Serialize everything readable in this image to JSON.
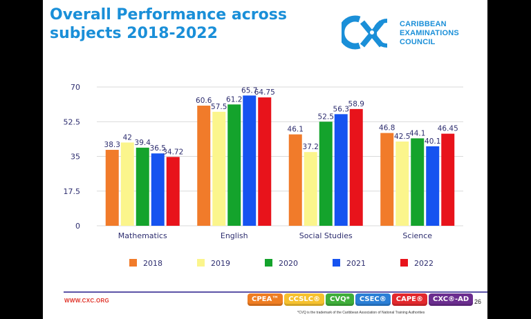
{
  "slide": {
    "title": "Overall Performance across subjects 2018-2022",
    "logo": {
      "line1": "CARIBBEAN",
      "line2": "EXAMINATIONS",
      "line3": "COUNCIL"
    },
    "website": "WWW.CXC.ORG",
    "page_number": "26",
    "trademark": "*CVQ is the trademark of the Caribbean Association of National Training Authorities",
    "badges": [
      {
        "label": "CPEA™",
        "color": "#ef7d22"
      },
      {
        "label": "CCSLC®",
        "color": "#f6c12e"
      },
      {
        "label": "CVQ*",
        "color": "#3fae3a"
      },
      {
        "label": "CSEC®",
        "color": "#2b7fd6"
      },
      {
        "label": "CAPE®",
        "color": "#e2282d"
      },
      {
        "label": "CXC®-AD",
        "color": "#6b2d8f"
      }
    ]
  },
  "chart_data": {
    "type": "bar",
    "categories": [
      "Mathematics",
      "English",
      "Social Studies",
      "Science"
    ],
    "series": [
      {
        "name": "2018",
        "color": "#f17b2a",
        "values": [
          38.3,
          60.6,
          46.1,
          46.8
        ],
        "labels": [
          "38.3",
          "60.6",
          "46.1",
          "46.8"
        ]
      },
      {
        "name": "2019",
        "color": "#fbf58c",
        "values": [
          42,
          57.5,
          37.2,
          42.5
        ],
        "labels": [
          "42",
          "57.5",
          "37.2",
          "42.5"
        ]
      },
      {
        "name": "2020",
        "color": "#14a32c",
        "values": [
          39.4,
          61.2,
          52.5,
          44.1
        ],
        "labels": [
          "39.4",
          "61.2",
          "52.5",
          "44.1"
        ]
      },
      {
        "name": "2021",
        "color": "#1653f0",
        "values": [
          36.5,
          65.7,
          56.3,
          40.1
        ],
        "labels": [
          "36.5",
          "65.7",
          "56.3",
          "40.1"
        ]
      },
      {
        "name": "2022",
        "color": "#e8131b",
        "values": [
          34.72,
          64.75,
          58.9,
          46.45
        ],
        "labels": [
          "34.72",
          "64.75",
          "58.9",
          "46.45"
        ]
      }
    ],
    "yticks": [
      "0",
      "17.5",
      "35",
      "52.5",
      "70"
    ],
    "ylim": [
      0,
      70
    ],
    "grid": true,
    "legend": "bottom"
  }
}
